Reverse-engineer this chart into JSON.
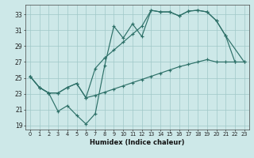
{
  "xlabel": "Humidex (Indice chaleur)",
  "x_ticks": [
    0,
    1,
    2,
    3,
    4,
    5,
    6,
    7,
    8,
    9,
    10,
    11,
    12,
    13,
    14,
    15,
    16,
    17,
    18,
    19,
    20,
    21,
    22,
    23
  ],
  "ylim": [
    18.5,
    34.2
  ],
  "xlim": [
    -0.5,
    23.5
  ],
  "yticks": [
    19,
    21,
    23,
    25,
    27,
    29,
    31,
    33
  ],
  "bg_color": "#cde8e8",
  "grid_color": "#a0c8c8",
  "line_color": "#2d7068",
  "line1_x": [
    0,
    1,
    2,
    3,
    4,
    5,
    6,
    7,
    8,
    9,
    10,
    11,
    12,
    13,
    14,
    15,
    16,
    17,
    18,
    19,
    20,
    21,
    22
  ],
  "line1_y": [
    25.2,
    23.8,
    23.1,
    20.8,
    21.5,
    20.3,
    19.2,
    20.5,
    26.5,
    31.5,
    30.0,
    31.8,
    30.2,
    33.5,
    33.3,
    33.3,
    32.8,
    33.4,
    33.5,
    33.3,
    32.2,
    30.3,
    27.0
  ],
  "line2_x": [
    0,
    1,
    2,
    3,
    4,
    5,
    6,
    7,
    8,
    9,
    10,
    11,
    12,
    13,
    14,
    15,
    16,
    17,
    18,
    19,
    20,
    21,
    23
  ],
  "line2_y": [
    25.2,
    23.8,
    23.1,
    23.1,
    23.8,
    24.3,
    22.5,
    26.2,
    27.5,
    28.5,
    29.5,
    30.5,
    31.5,
    33.5,
    33.3,
    33.3,
    32.8,
    33.4,
    33.5,
    33.3,
    32.2,
    30.3,
    27.0
  ],
  "line3_x": [
    0,
    1,
    2,
    3,
    4,
    5,
    6,
    7,
    8,
    9,
    10,
    11,
    12,
    13,
    14,
    15,
    16,
    17,
    18,
    19,
    20,
    21,
    22,
    23
  ],
  "line3_y": [
    25.2,
    23.8,
    23.1,
    23.1,
    23.8,
    24.3,
    22.5,
    22.8,
    23.2,
    23.6,
    24.0,
    24.4,
    24.8,
    25.2,
    25.6,
    26.0,
    26.4,
    26.7,
    27.0,
    27.3,
    27.0,
    27.0,
    27.0,
    27.0
  ]
}
